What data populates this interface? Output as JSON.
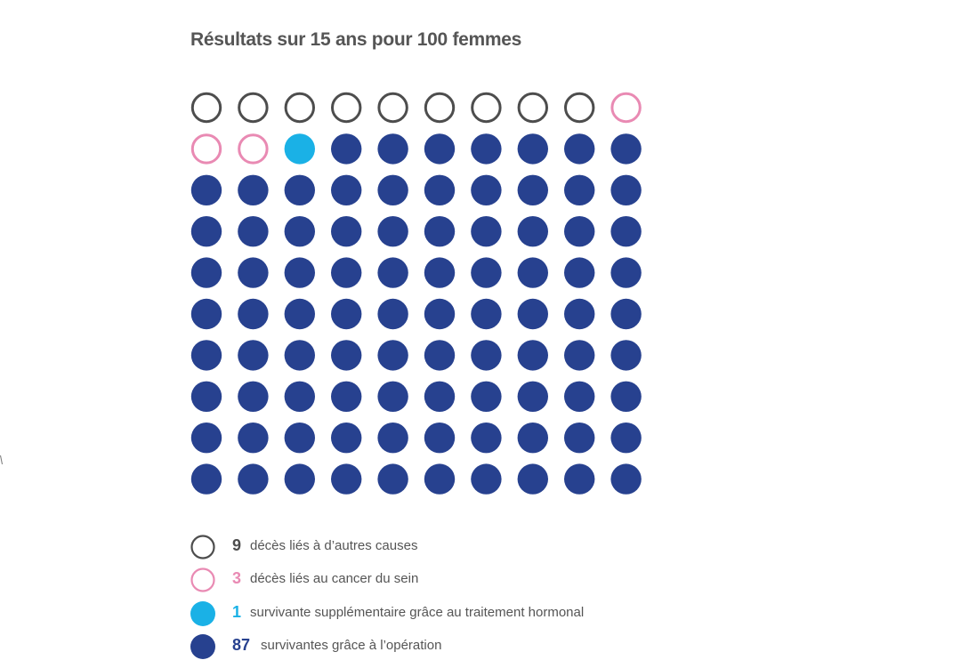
{
  "chart_data": {
    "type": "pictogram",
    "title": "Résultats sur 15 ans pour 100 femmes",
    "total": 100,
    "columns": 10,
    "categories": [
      {
        "count": 9,
        "count_label": "9",
        "label": "décès liés à d’autres causes",
        "style": "outline",
        "color": "#4d4d4d"
      },
      {
        "count": 3,
        "count_label": "3",
        "label": "décès liés au cancer du sein",
        "style": "outline",
        "color": "#e98ab3"
      },
      {
        "count": 1,
        "count_label": "1",
        "label": "survivante supplémentaire grâce au traitement hormonal",
        "style": "filled",
        "color": "#1ab1e6"
      },
      {
        "count": 87,
        "count_label": "87",
        "label": "survivantes grâce à l’opération",
        "style": "filled",
        "color": "#27418f"
      }
    ]
  }
}
